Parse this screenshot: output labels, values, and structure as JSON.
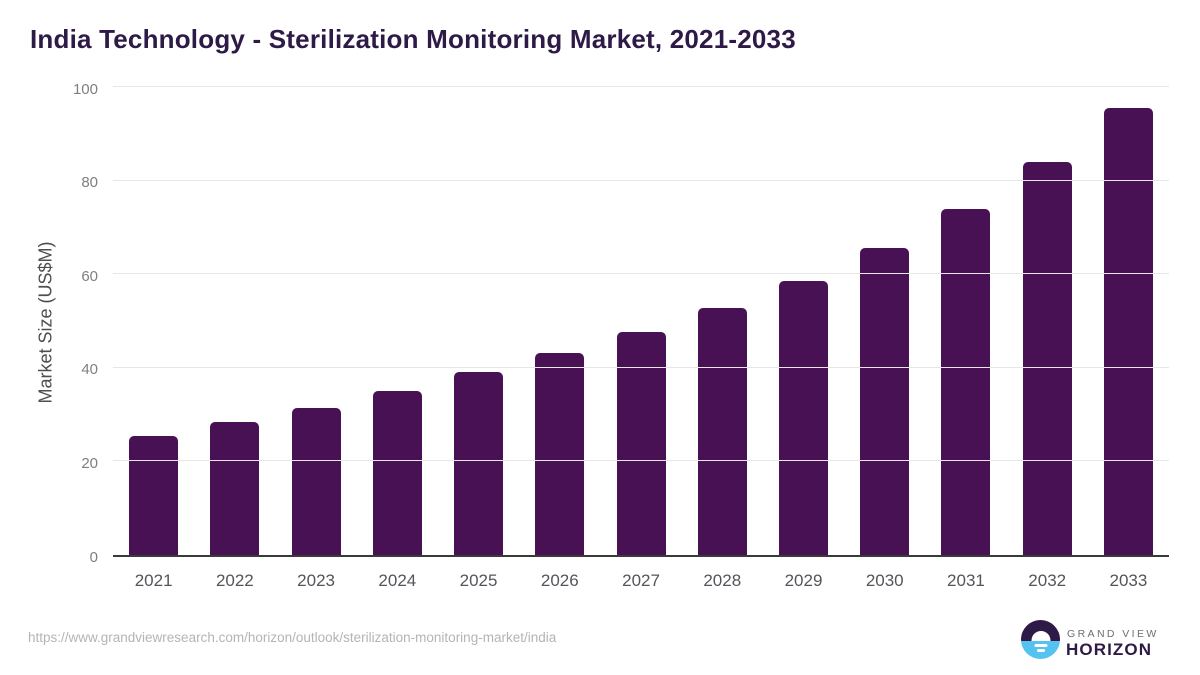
{
  "title": "India Technology - Sterilization Monitoring Market, 2021-2033",
  "source_url": "https://www.grandviewresearch.com/horizon/outlook/sterilization-monitoring-market/india",
  "logo": {
    "top_text": "GRAND VIEW",
    "bottom_text": "HORIZON"
  },
  "colors": {
    "bar": "#481154",
    "title": "#2e1a47",
    "grid": "#e7e7e7",
    "axis": "#3a3a3a",
    "tick": "#7f7f7f",
    "xlabel": "#54555a",
    "url": "#b4b4b4",
    "logo_dark": "#2e1a47",
    "logo_blue": "#56c2ef",
    "logo_gray": "#6d6e71"
  },
  "chart_data": {
    "type": "bar",
    "title": "India Technology - Sterilization Monitoring Market, 2021-2033",
    "categories": [
      "2021",
      "2022",
      "2023",
      "2024",
      "2025",
      "2026",
      "2027",
      "2028",
      "2029",
      "2030",
      "2031",
      "2032",
      "2033"
    ],
    "values": [
      25.5,
      28.5,
      31.5,
      35.0,
      39.0,
      43.2,
      47.6,
      52.7,
      58.5,
      65.6,
      74.0,
      84.0,
      95.5
    ],
    "xlabel": "",
    "ylabel": "Market Size (US$M)",
    "ylim": [
      0,
      100
    ],
    "yticks": [
      0,
      20,
      40,
      60,
      80,
      100
    ],
    "grid": "horizontal",
    "legend": "none",
    "bar_color": "#481154"
  }
}
